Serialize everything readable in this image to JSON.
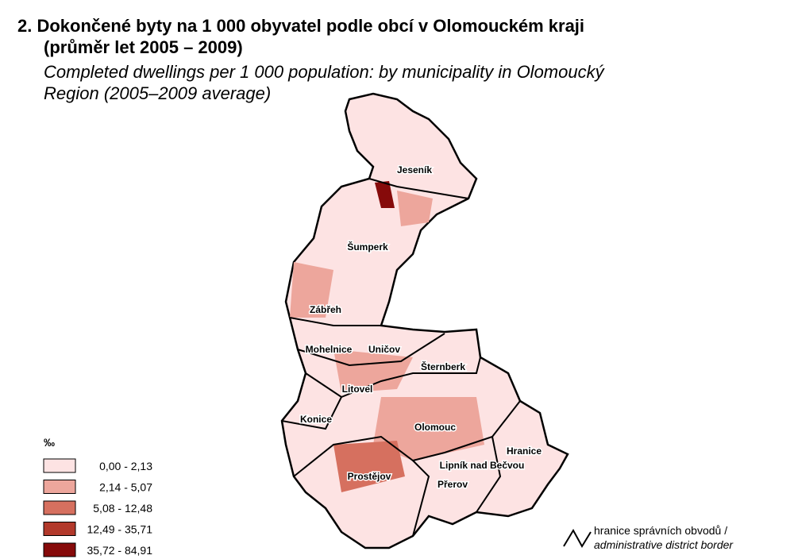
{
  "header": {
    "title": "2. Dokončené byty na 1 000 obyvatel podle obcí v Olomouckém kraji",
    "title_line2": "(průměr let 2005 – 2009)",
    "subtitle_line1": "Completed dwellings per 1 000 population: by municipality in Olomoucký",
    "subtitle_line2": "Region (2005–2009 average)"
  },
  "legend": {
    "unit": "‰",
    "items": [
      {
        "label": "0,00 -   2,13",
        "color": "#fde3e3"
      },
      {
        "label": "2,14 -   5,07",
        "color": "#eda69c"
      },
      {
        "label": "5,08 - 12,48",
        "color": "#d6705f"
      },
      {
        "label": "12,49 - 35,71",
        "color": "#b2392b"
      },
      {
        "label": "35,72 - 84,91",
        "color": "#860a0a"
      }
    ]
  },
  "border_legend": {
    "line1": "hranice správních obvodů /",
    "line2": "administrative district border"
  },
  "districts": [
    "Jeseník",
    "Šumperk",
    "Zábřeh",
    "Mohelnice",
    "Uničov",
    "Šternberk",
    "Litovel",
    "Konice",
    "Olomouc",
    "Hranice",
    "Lipník nad Bečvou",
    "Prostějov",
    "Přerov"
  ]
}
